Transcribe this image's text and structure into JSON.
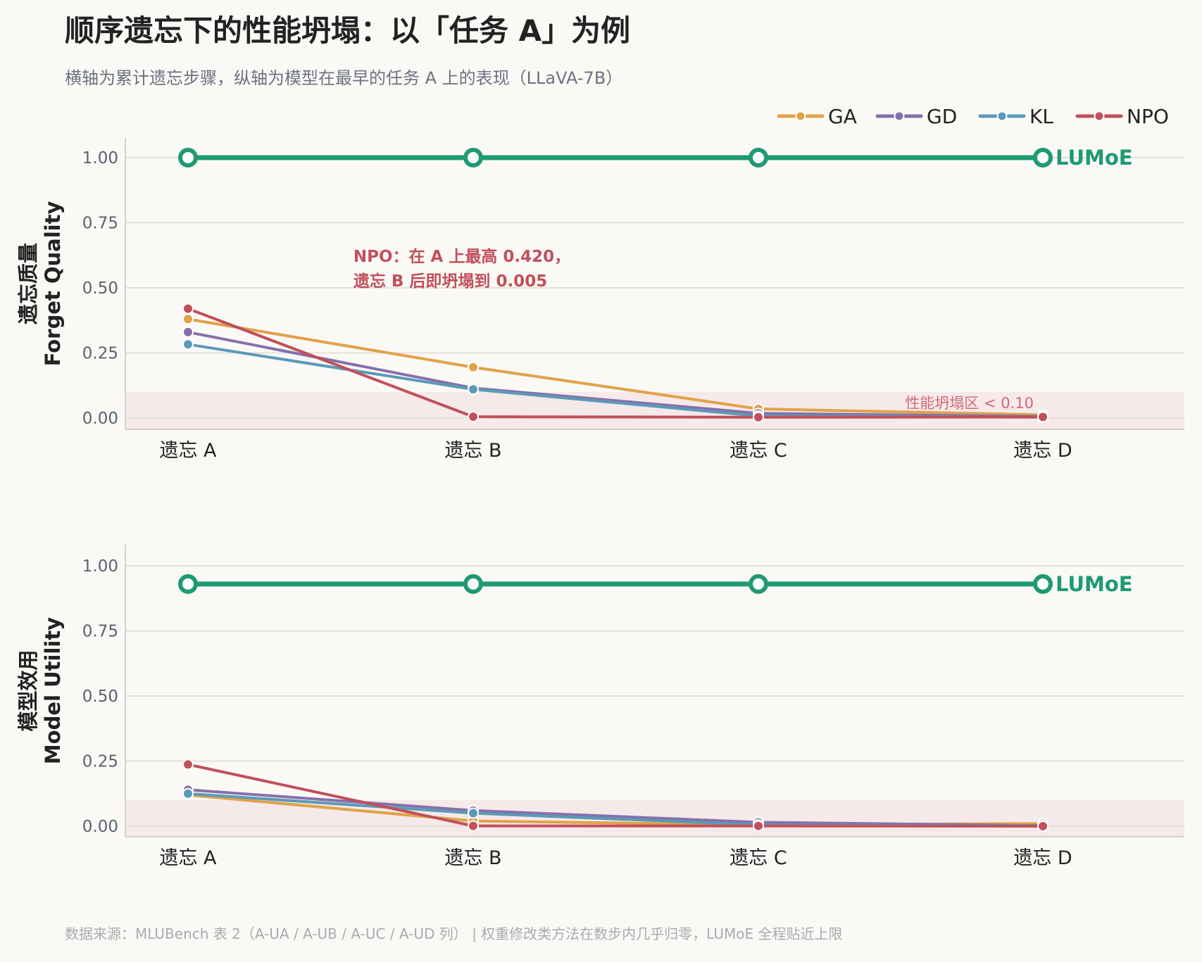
{
  "title": "顺序遗忘下的性能坍塌：以「任务 A」为例",
  "subtitle": "横轴为累计遗忘步骤，纵轴为模型在最早的任务 A 上的表现（LLaVA-7B）",
  "footer": "数据来源：MLUBench 表 2（A-UA / A-UB / A-UC / A-UD 列）  |  权重修改类方法在数步内几乎归零，LUMoE 全程贴近上限",
  "colors": {
    "GA": "#e0a24a",
    "GD": "#8670ab",
    "KL": "#5a9ab7",
    "NPO": "#c0505a",
    "LUMoE": "#1f9a72",
    "collapse_band": "#f4e3e4",
    "title": "#222222",
    "subtitle": "#6a7280",
    "tick": "#5a6270",
    "grid": "#e4e1dc",
    "footer": "#a8aab0"
  },
  "chart_data": [
    {
      "type": "line",
      "ylabel_cn": "遗忘质量",
      "ylabel_en": "Forget Quality",
      "categories": [
        "遗忘 A",
        "遗忘 B",
        "遗忘 C",
        "遗忘 D"
      ],
      "ylim": [
        -0.04,
        1.08
      ],
      "yticks": [
        0.0,
        0.25,
        0.5,
        0.75,
        1.0
      ],
      "ytick_labels": [
        "0.00",
        "0.25",
        "0.50",
        "0.75",
        "1.00"
      ],
      "grid": true,
      "series": [
        {
          "name": "GA",
          "values": [
            0.38,
            0.195,
            0.035,
            0.012
          ]
        },
        {
          "name": "GD",
          "values": [
            0.33,
            0.115,
            0.018,
            0.006
          ]
        },
        {
          "name": "KL",
          "values": [
            0.283,
            0.11,
            0.008,
            0.003
          ]
        },
        {
          "name": "NPO",
          "values": [
            0.42,
            0.005,
            0.003,
            0.004
          ]
        },
        {
          "name": "LUMoE",
          "values": [
            1.0,
            1.0,
            1.0,
            1.0
          ]
        }
      ],
      "highlight_series": "LUMoE",
      "highlight_label": "LUMoE",
      "collapse_zone": {
        "max": 0.1,
        "label": "性能坍塌区 < 0.10"
      },
      "annotation": {
        "lines": [
          "NPO：在 A 上最高 0.420，",
          "遗忘 B 后即坍塌到 0.005"
        ],
        "x_category": 0.58,
        "y": 0.6
      }
    },
    {
      "type": "line",
      "ylabel_cn": "模型效用",
      "ylabel_en": "Model Utility",
      "categories": [
        "遗忘 A",
        "遗忘 B",
        "遗忘 C",
        "遗忘 D"
      ],
      "ylim": [
        -0.04,
        1.08
      ],
      "yticks": [
        0.0,
        0.25,
        0.5,
        0.75,
        1.0
      ],
      "ytick_labels": [
        "0.00",
        "0.25",
        "0.50",
        "0.75",
        "1.00"
      ],
      "grid": true,
      "series": [
        {
          "name": "GA",
          "values": [
            0.12,
            0.02,
            0.005,
            0.01
          ]
        },
        {
          "name": "GD",
          "values": [
            0.14,
            0.06,
            0.015,
            0.002
          ]
        },
        {
          "name": "KL",
          "values": [
            0.125,
            0.05,
            0.005,
            0.002
          ]
        },
        {
          "name": "NPO",
          "values": [
            0.237,
            0.001,
            0.001,
            0.0
          ]
        },
        {
          "name": "LUMoE",
          "values": [
            0.93,
            0.93,
            0.93,
            0.93
          ]
        }
      ],
      "highlight_series": "LUMoE",
      "highlight_label": "LUMoE",
      "collapse_zone": {
        "max": 0.1
      }
    }
  ],
  "legend": {
    "placement": "top-right",
    "items": [
      "GA",
      "GD",
      "KL",
      "NPO"
    ]
  }
}
